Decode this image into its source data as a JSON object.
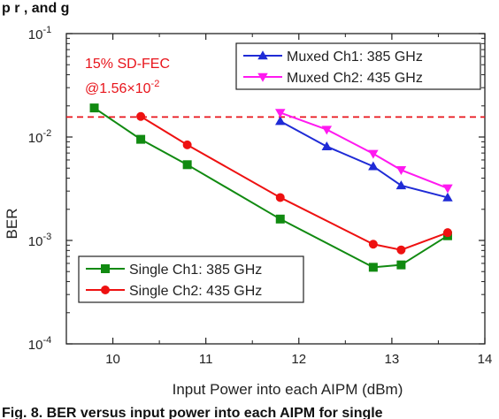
{
  "top_fragment": "p        r , and g",
  "caption_fragment": "Fig. 8. BER versus input power into each AIPM for single",
  "chart_data": {
    "type": "line",
    "title": "",
    "xlabel": "Input Power into each AIPM (dBm)",
    "ylabel": "BER",
    "xlim": [
      9.5,
      14
    ],
    "ylim": [
      0.0001,
      0.1
    ],
    "yscale": "log",
    "xticks": [
      "10",
      "11",
      "12",
      "13",
      "14"
    ],
    "yticks": [
      {
        "value": 0.1,
        "base": "10",
        "exp": "-1"
      },
      {
        "value": 0.01,
        "base": "10",
        "exp": "-2"
      },
      {
        "value": 0.001,
        "base": "10",
        "exp": "-3"
      },
      {
        "value": 0.0001,
        "base": "10",
        "exp": "-4"
      }
    ],
    "grid": false,
    "threshold": {
      "value": 0.0156,
      "label_line1": "15% SD-FEC",
      "label_line2_prefix": "@1.56×10",
      "label_line2_exp": "-2",
      "color": "#e8141b"
    },
    "legends": [
      {
        "placement": "top-right",
        "items": [
          0,
          1
        ]
      },
      {
        "placement": "bottom-left",
        "items": [
          2,
          3
        ]
      }
    ],
    "series": [
      {
        "name": "Muxed Ch1: 385 GHz",
        "color": "#1f2bd6",
        "marker": "triangle-up",
        "x": [
          11.8,
          12.3,
          12.8,
          13.1,
          13.6
        ],
        "y": [
          0.0142,
          0.0081,
          0.0052,
          0.0034,
          0.0026
        ]
      },
      {
        "name": "Muxed Ch2: 435 GHz",
        "color": "#ff19f0",
        "marker": "triangle-down",
        "x": [
          11.8,
          12.3,
          12.8,
          13.1,
          13.6
        ],
        "y": [
          0.0172,
          0.0118,
          0.0069,
          0.0048,
          0.0032
        ]
      },
      {
        "name": "Single Ch1: 385 GHz",
        "color": "#118a11",
        "marker": "square",
        "x": [
          9.8,
          10.3,
          10.8,
          11.8,
          12.8,
          13.1,
          13.6
        ],
        "y": [
          0.0191,
          0.0095,
          0.0054,
          0.00161,
          0.00055,
          0.00058,
          0.00111
        ]
      },
      {
        "name": "Single Ch2: 435 GHz",
        "color": "#ee1111",
        "marker": "circle",
        "x": [
          10.3,
          10.8,
          11.8,
          12.8,
          13.1,
          13.6
        ],
        "y": [
          0.0158,
          0.0084,
          0.0026,
          0.00092,
          0.00081,
          0.00119
        ]
      }
    ]
  }
}
